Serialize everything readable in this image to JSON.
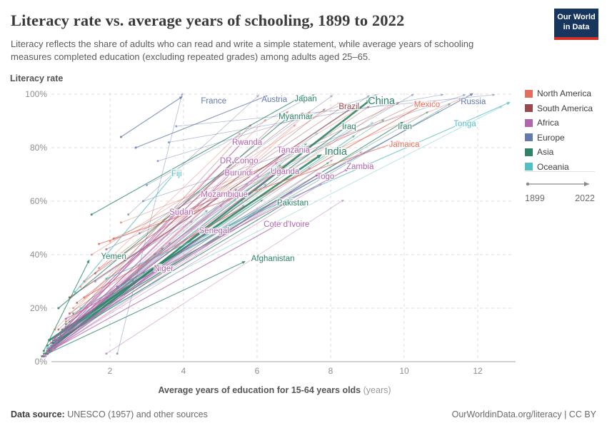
{
  "header": {
    "title": "Literacy rate vs. average years of schooling, 1899 to 2022",
    "subtitle": "Literacy reflects the share of adults who can read and write a simple statement, while average years of schooling measures completed education (excluding repeated grades) among adults aged 25–65.",
    "logo": {
      "line1": "Our World",
      "line2": "in Data",
      "bg_color": "#18355e",
      "bar_color": "#cf3129"
    }
  },
  "chart": {
    "y_axis_title": "Literacy rate",
    "x_axis": {
      "title_main": "Average years of education for 15-64 years olds",
      "title_unit": "(years)"
    }
  },
  "legend": {
    "items": [
      {
        "label": "North America",
        "key": "north_america",
        "color": "#e56e5a"
      },
      {
        "label": "South America",
        "key": "south_america",
        "color": "#98494d"
      },
      {
        "label": "Africa",
        "key": "africa",
        "color": "#b264ac"
      },
      {
        "label": "Europe",
        "key": "europe",
        "color": "#6279ab"
      },
      {
        "label": "Asia",
        "key": "asia",
        "color": "#2c8465"
      },
      {
        "label": "Oceania",
        "key": "oceania",
        "color": "#53bfc4"
      }
    ],
    "timeline": {
      "start": "1899",
      "end": "2022"
    }
  },
  "chart_data": {
    "type": "scatter",
    "connected": true,
    "title": "Literacy rate vs. average years of schooling, 1899 to 2022",
    "xlabel": "Average years of education for 15-64 years olds (years)",
    "ylabel": "Literacy rate",
    "x_range": [
      0,
      13.2
    ],
    "y_range": [
      0,
      100
    ],
    "x_ticks": [
      2,
      4,
      6,
      8,
      10,
      12
    ],
    "y_ticks": [
      0,
      20,
      40,
      60,
      80,
      100
    ],
    "y_tick_suffix": "%",
    "grid": "dashed",
    "legend_position": "right",
    "time_start": "1899",
    "time_end": "2022",
    "continent_colors": {
      "north_america": "#e56e5a",
      "south_america": "#98494d",
      "africa": "#b264ac",
      "europe": "#6279ab",
      "asia": "#2c8465",
      "oceania": "#53bfc4"
    },
    "countries": [
      {
        "name": "France",
        "continent": "europe",
        "start": [
          2.3,
          84
        ],
        "end": [
          3.9,
          98.5
        ],
        "label": [
          4.82,
          97.6
        ],
        "big": false
      },
      {
        "name": "Austria",
        "continent": "europe",
        "start": [
          2.7,
          80
        ],
        "end": [
          6.2,
          99
        ],
        "label": [
          6.47,
          98.1
        ],
        "big": false
      },
      {
        "name": "Japan",
        "continent": "asia",
        "start": [
          1.5,
          55
        ],
        "end": [
          7.2,
          99
        ],
        "label": [
          7.32,
          98.4
        ],
        "big": false
      },
      {
        "name": "Brazil",
        "continent": "south_america",
        "start": [
          0.9,
          24
        ],
        "end": [
          8.6,
          95
        ],
        "label": [
          8.5,
          95.5
        ],
        "big": false
      },
      {
        "name": "China",
        "continent": "asia",
        "start": [
          0.3,
          4
        ],
        "end": [
          9.0,
          97
        ],
        "label": [
          9.38,
          97.3
        ],
        "big": true
      },
      {
        "name": "Mexico",
        "continent": "north_america",
        "start": [
          1.3,
          24
        ],
        "end": [
          10.5,
          96
        ],
        "label": [
          10.62,
          96.3
        ],
        "big": false
      },
      {
        "name": "Russia",
        "continent": "europe",
        "start": [
          2.2,
          28
        ],
        "end": [
          11.8,
          99.7
        ],
        "label": [
          11.88,
          97.3
        ],
        "big": false
      },
      {
        "name": "Myanmar",
        "continent": "asia",
        "start": [
          0.6,
          20
        ],
        "end": [
          6.9,
          92
        ],
        "label": [
          7.05,
          91.7
        ],
        "big": false
      },
      {
        "name": "Iraq",
        "continent": "asia",
        "start": [
          0.3,
          6
        ],
        "end": [
          8.4,
          87.5
        ],
        "label": [
          8.5,
          88.0
        ],
        "big": false
      },
      {
        "name": "Iran",
        "continent": "asia",
        "start": [
          0.5,
          9
        ],
        "end": [
          9.9,
          89
        ],
        "label": [
          10.02,
          88.0
        ],
        "big": false
      },
      {
        "name": "Tonga",
        "continent": "oceania",
        "start": [
          1.9,
          31
        ],
        "end": [
          12.8,
          96.5
        ],
        "label": [
          11.65,
          89.1
        ],
        "big": false
      },
      {
        "name": "Rwanda",
        "continent": "africa",
        "start": [
          0.4,
          7
        ],
        "end": [
          5.6,
          82
        ],
        "label": [
          5.73,
          82.1
        ],
        "big": false
      },
      {
        "name": "Tanzania",
        "continent": "africa",
        "start": [
          0.5,
          9
        ],
        "end": [
          6.9,
          79.5
        ],
        "label": [
          6.99,
          79.2
        ],
        "big": false
      },
      {
        "name": "India",
        "continent": "asia",
        "start": [
          0.35,
          8
        ],
        "end": [
          7.65,
          76.5
        ],
        "label": [
          8.14,
          78.4
        ],
        "big": true
      },
      {
        "name": "Jamaica",
        "continent": "north_america",
        "start": [
          1.7,
          44
        ],
        "end": [
          9.8,
          82
        ],
        "label": [
          10.0,
          81.3
        ],
        "big": false
      },
      {
        "name": "Zambia",
        "continent": "africa",
        "start": [
          0.8,
          16
        ],
        "end": [
          8.4,
          71.5
        ],
        "label": [
          8.8,
          73.1
        ],
        "big": false
      },
      {
        "name": "DR Congo",
        "continent": "africa",
        "start": [
          0.45,
          8
        ],
        "end": [
          5.4,
          75.5
        ],
        "label": [
          5.51,
          75.2
        ],
        "big": false
      },
      {
        "name": "Uganda",
        "continent": "africa",
        "start": [
          0.5,
          9
        ],
        "end": [
          6.6,
          71.5
        ],
        "label": [
          6.76,
          71.2
        ],
        "big": false
      },
      {
        "name": "Burundi",
        "continent": "africa",
        "start": [
          0.35,
          5
        ],
        "end": [
          5.3,
          70.5
        ],
        "label": [
          5.5,
          70.7
        ],
        "big": false
      },
      {
        "name": "Togo",
        "continent": "africa",
        "start": [
          0.55,
          8
        ],
        "end": [
          7.6,
          69.5
        ],
        "label": [
          7.86,
          69.3
        ],
        "big": false
      },
      {
        "name": "Fiji",
        "continent": "oceania",
        "start": [
          1.05,
          26
        ],
        "end": [
          3.7,
          69.5
        ],
        "label": [
          3.81,
          70.4
        ],
        "big": false
      },
      {
        "name": "Mozambique",
        "continent": "africa",
        "start": [
          0.3,
          4
        ],
        "end": [
          5.0,
          62.5
        ],
        "label": [
          5.11,
          62.7
        ],
        "big": false
      },
      {
        "name": "Pakistan",
        "continent": "asia",
        "start": [
          0.45,
          7
        ],
        "end": [
          6.8,
          59.5
        ],
        "label": [
          6.97,
          59.5
        ],
        "big": false
      },
      {
        "name": "Sudan",
        "continent": "africa",
        "start": [
          0.3,
          4
        ],
        "end": [
          3.8,
          55.5
        ],
        "label": [
          3.94,
          56.0
        ],
        "big": false
      },
      {
        "name": "Cote d'Ivoire",
        "continent": "africa",
        "start": [
          0.5,
          5
        ],
        "end": [
          6.6,
          51.5
        ],
        "label": [
          6.8,
          51.5
        ],
        "big": false
      },
      {
        "name": "Senegal",
        "continent": "africa",
        "start": [
          0.3,
          4
        ],
        "end": [
          4.7,
          49
        ],
        "label": [
          4.83,
          49.1
        ],
        "big": false
      },
      {
        "name": "Yemen",
        "continent": "asia",
        "start": [
          0.2,
          4
        ],
        "end": [
          1.4,
          37
        ],
        "label": [
          2.1,
          39.5
        ],
        "big": false
      },
      {
        "name": "Afghanistan",
        "continent": "asia",
        "start": [
          0.3,
          3
        ],
        "end": [
          5.6,
          37
        ],
        "label": [
          6.43,
          38.7
        ],
        "big": false
      },
      {
        "name": "Niger",
        "continent": "africa",
        "start": [
          0.2,
          2
        ],
        "end": [
          3.2,
          34
        ],
        "label": [
          3.46,
          34.9
        ],
        "big": false
      }
    ],
    "unlabeled_lines": [
      [
        2.2,
        3,
        3.95,
        99.5,
        "europe"
      ],
      [
        2.5,
        55,
        6.0,
        99,
        "europe"
      ],
      [
        3.0,
        66,
        7.5,
        99.5,
        "europe"
      ],
      [
        2.8,
        48,
        8.0,
        99,
        "europe"
      ],
      [
        3.3,
        75,
        9.2,
        99.5,
        "europe"
      ],
      [
        2.4,
        38,
        10.2,
        99.5,
        "europe"
      ],
      [
        3.6,
        82,
        11.0,
        99.7,
        "europe"
      ],
      [
        2.9,
        60,
        11.6,
        99.5,
        "europe"
      ],
      [
        3.8,
        88,
        12.4,
        99.7,
        "europe"
      ],
      [
        1.6,
        30,
        9.0,
        99,
        "europe"
      ],
      [
        0.5,
        12,
        6.2,
        90,
        "north_america"
      ],
      [
        1.0,
        20,
        7.4,
        93,
        "north_america"
      ],
      [
        1.7,
        35,
        8.8,
        95,
        "north_america"
      ],
      [
        0.8,
        15,
        9.6,
        96,
        "north_america"
      ],
      [
        2.3,
        52,
        10.8,
        97,
        "north_america"
      ],
      [
        1.2,
        28,
        5.5,
        85,
        "north_america"
      ],
      [
        0.6,
        8,
        7.0,
        88,
        "north_america"
      ],
      [
        2.0,
        45,
        11.5,
        98,
        "north_america"
      ],
      [
        1.5,
        40,
        8.2,
        96.5,
        "north_america"
      ],
      [
        0.6,
        12,
        6.8,
        93,
        "south_america"
      ],
      [
        1.1,
        22,
        7.8,
        94,
        "south_america"
      ],
      [
        1.6,
        33,
        8.4,
        96,
        "south_america"
      ],
      [
        0.9,
        18,
        9.0,
        95,
        "south_america"
      ],
      [
        2.1,
        46,
        9.8,
        96.5,
        "south_america"
      ],
      [
        0.5,
        9,
        5.8,
        88,
        "south_america"
      ],
      [
        1.3,
        30,
        7.2,
        92.5,
        "south_america"
      ],
      [
        1.9,
        42,
        10.4,
        97,
        "south_america"
      ],
      [
        0.15,
        2,
        3.2,
        40,
        "africa"
      ],
      [
        0.25,
        3,
        4.2,
        52,
        "africa"
      ],
      [
        0.2,
        2,
        5.6,
        58,
        "africa"
      ],
      [
        0.35,
        5,
        4.8,
        62,
        "africa"
      ],
      [
        0.5,
        7,
        6.2,
        66,
        "africa"
      ],
      [
        0.3,
        3,
        6.9,
        63,
        "africa"
      ],
      [
        0.45,
        6,
        5.2,
        70,
        "africa"
      ],
      [
        0.6,
        9,
        7.4,
        72,
        "africa"
      ],
      [
        0.25,
        2,
        4.4,
        46,
        "africa"
      ],
      [
        0.4,
        4,
        5.9,
        55,
        "africa"
      ],
      [
        0.7,
        11,
        8.0,
        75,
        "africa"
      ],
      [
        0.55,
        8,
        6.5,
        74,
        "africa"
      ],
      [
        0.35,
        4,
        7.7,
        66,
        "africa"
      ],
      [
        0.8,
        13,
        8.8,
        78,
        "africa"
      ],
      [
        0.2,
        2,
        2.9,
        33,
        "africa"
      ],
      [
        0.5,
        6,
        5.0,
        58,
        "africa"
      ],
      [
        0.9,
        15,
        7.1,
        80,
        "africa"
      ],
      [
        0.3,
        3,
        3.6,
        44,
        "africa"
      ],
      [
        0.65,
        10,
        6.0,
        69,
        "africa"
      ],
      [
        1.9,
        3,
        8.3,
        60,
        "africa"
      ],
      [
        0.2,
        3,
        4.6,
        56,
        "asia"
      ],
      [
        0.3,
        5,
        5.4,
        64,
        "asia"
      ],
      [
        0.5,
        8,
        6.6,
        73,
        "asia"
      ],
      [
        0.4,
        6,
        7.9,
        74,
        "asia"
      ],
      [
        0.6,
        10,
        8.6,
        84,
        "asia"
      ],
      [
        0.25,
        3,
        3.4,
        42,
        "asia"
      ],
      [
        0.8,
        14,
        9.4,
        90,
        "asia"
      ],
      [
        0.35,
        4,
        6.1,
        60,
        "asia"
      ],
      [
        1.0,
        18,
        10.6,
        93,
        "asia"
      ],
      [
        0.45,
        7,
        7.3,
        81,
        "asia"
      ],
      [
        0.15,
        2,
        2.6,
        30,
        "asia"
      ],
      [
        0.7,
        12,
        11.2,
        96,
        "asia"
      ],
      [
        0.3,
        5,
        7.6,
        85,
        "oceania"
      ],
      [
        0.5,
        8,
        9.1,
        89,
        "oceania"
      ],
      [
        0.8,
        12,
        12.6,
        95,
        "oceania"
      ],
      [
        0.4,
        6,
        5.7,
        66,
        "oceania"
      ],
      [
        1.2,
        20,
        10.9,
        93,
        "oceania"
      ],
      [
        0.6,
        9,
        8.5,
        87,
        "oceania"
      ]
    ]
  },
  "footer": {
    "source_label": "Data source:",
    "source_text": " UNESCO (1957) and other sources",
    "right": "OurWorldinData.org/literacy | CC BY"
  }
}
